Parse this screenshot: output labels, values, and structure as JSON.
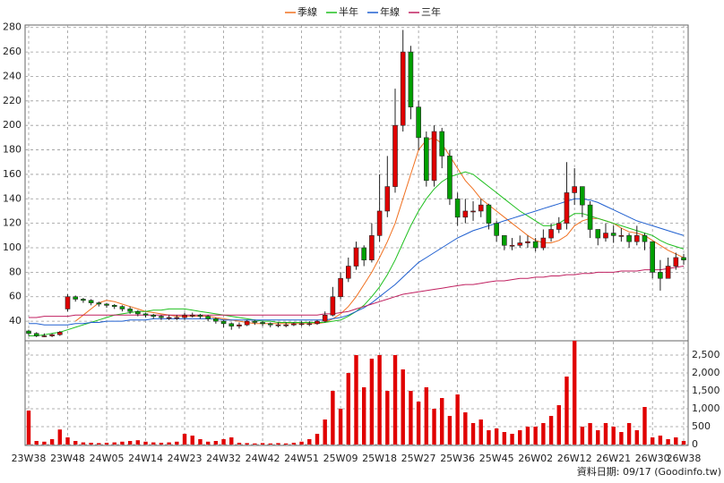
{
  "chart_data": {
    "type": "candlestick",
    "categories": [
      "23W38",
      null,
      null,
      null,
      null,
      "23W48",
      null,
      null,
      null,
      null,
      "24W05",
      null,
      null,
      null,
      null,
      "24W14",
      null,
      null,
      null,
      null,
      "24W23",
      null,
      null,
      null,
      null,
      "24W32",
      null,
      null,
      null,
      null,
      "24W42",
      null,
      null,
      null,
      null,
      "24W51",
      null,
      null,
      null,
      null,
      "25W09",
      null,
      null,
      null,
      null,
      "25W18",
      null,
      null,
      null,
      null,
      "25W27",
      null,
      null,
      null,
      null,
      "25W36",
      null,
      null,
      null,
      null,
      "25W45",
      null,
      null,
      null,
      null,
      "26W02",
      null,
      null,
      null,
      null,
      "26W12",
      null,
      null,
      null,
      null,
      "26W21",
      null,
      null,
      null,
      null,
      "26W30",
      null,
      null,
      null,
      "26W38"
    ],
    "open": [
      32,
      30,
      28,
      28,
      29,
      50,
      60,
      58,
      57,
      55,
      54,
      53,
      52,
      50,
      48,
      46,
      45,
      44,
      43,
      43,
      43,
      45,
      45,
      44,
      42,
      40,
      38,
      36,
      37,
      40,
      39,
      38,
      37,
      37,
      37,
      38,
      38,
      38,
      40,
      45,
      60,
      75,
      85,
      100,
      90,
      110,
      130,
      150,
      200,
      260,
      215,
      190,
      155,
      195,
      175,
      140,
      125,
      130,
      130,
      135,
      120,
      110,
      102,
      102,
      104,
      105,
      100,
      108,
      115,
      120,
      145,
      150,
      135,
      115,
      108,
      112,
      110,
      110,
      105,
      110,
      105,
      80,
      75,
      85,
      92
    ],
    "high": [
      33,
      31,
      30,
      30,
      32,
      62,
      61,
      59,
      58,
      56,
      55,
      54,
      53,
      52,
      49,
      47,
      46,
      45,
      45,
      45,
      47,
      47,
      46,
      45,
      43,
      41,
      39,
      39,
      41,
      41,
      40,
      39,
      39,
      39,
      39,
      40,
      40,
      41,
      48,
      68,
      80,
      92,
      105,
      102,
      120,
      160,
      175,
      230,
      278,
      265,
      220,
      195,
      200,
      198,
      180,
      145,
      140,
      138,
      140,
      136,
      122,
      110,
      108,
      110,
      110,
      108,
      115,
      120,
      125,
      170,
      165,
      150,
      138,
      115,
      120,
      118,
      116,
      112,
      118,
      112,
      105,
      90,
      92,
      96,
      95
    ],
    "low": [
      28,
      27,
      27,
      27,
      28,
      48,
      56,
      55,
      53,
      52,
      51,
      50,
      48,
      46,
      44,
      43,
      42,
      41,
      41,
      41,
      41,
      43,
      42,
      40,
      38,
      35,
      33,
      34,
      36,
      37,
      36,
      35,
      35,
      35,
      36,
      36,
      36,
      37,
      39,
      44,
      58,
      72,
      82,
      85,
      88,
      105,
      125,
      145,
      195,
      205,
      180,
      150,
      150,
      165,
      135,
      118,
      120,
      122,
      125,
      115,
      105,
      98,
      98,
      100,
      100,
      97,
      98,
      105,
      112,
      115,
      135,
      125,
      108,
      102,
      105,
      104,
      105,
      100,
      102,
      98,
      75,
      65,
      75,
      82,
      86
    ],
    "close": [
      30,
      28,
      28,
      29,
      31,
      60,
      58,
      57,
      55,
      54,
      53,
      52,
      50,
      48,
      46,
      45,
      44,
      43,
      43,
      43,
      45,
      45,
      44,
      42,
      40,
      38,
      36,
      37,
      40,
      39,
      38,
      37,
      37,
      37,
      38,
      38,
      38,
      40,
      45,
      60,
      75,
      85,
      100,
      90,
      110,
      130,
      150,
      200,
      260,
      215,
      190,
      155,
      195,
      175,
      140,
      125,
      130,
      130,
      135,
      120,
      110,
      102,
      102,
      104,
      105,
      100,
      108,
      115,
      120,
      145,
      150,
      135,
      115,
      108,
      112,
      110,
      110,
      105,
      110,
      105,
      80,
      75,
      85,
      92,
      90
    ],
    "up_color": "#e00000",
    "down_color": "#00a000",
    "volume": [
      950,
      100,
      80,
      150,
      420,
      200,
      100,
      60,
      50,
      40,
      50,
      60,
      80,
      100,
      120,
      80,
      60,
      50,
      60,
      80,
      300,
      250,
      150,
      80,
      100,
      150,
      200,
      50,
      40,
      30,
      40,
      30,
      40,
      30,
      50,
      80,
      150,
      300,
      700,
      1500,
      1000,
      2000,
      2500,
      1600,
      2400,
      2500,
      1500,
      2500,
      2100,
      1500,
      1200,
      1600,
      1000,
      1300,
      800,
      1400,
      900,
      600,
      700,
      400,
      450,
      350,
      300,
      400,
      500,
      500,
      600,
      800,
      1100,
      1900,
      2900,
      500,
      600,
      400,
      600,
      500,
      350,
      600,
      400,
      1050,
      200,
      250,
      150,
      200,
      100
    ],
    "volume_color": "#e00000",
    "series": [
      {
        "name": "季線",
        "color": "#f07020",
        "values": [
          null,
          null,
          null,
          null,
          null,
          null,
          40,
          45,
          50,
          55,
          57,
          56,
          54,
          52,
          50,
          48,
          47,
          46,
          45,
          44,
          44,
          44,
          44,
          44,
          43,
          42,
          41,
          40,
          39,
          38,
          38,
          38,
          38,
          38,
          38,
          38,
          38,
          38,
          39,
          42,
          46,
          52,
          60,
          70,
          80,
          92,
          105,
          120,
          140,
          160,
          180,
          188,
          190,
          185,
          175,
          165,
          155,
          148,
          140,
          135,
          130,
          125,
          120,
          115,
          110,
          106,
          104,
          104,
          106,
          110,
          118,
          122,
          124,
          124,
          122,
          120,
          116,
          113,
          112,
          110,
          106,
          102,
          98,
          95,
          92
        ]
      },
      {
        "name": "半年",
        "color": "#20c020",
        "values": [
          28,
          28,
          29,
          30,
          31,
          33,
          35,
          37,
          39,
          41,
          43,
          45,
          46,
          47,
          48,
          48,
          49,
          49,
          50,
          50,
          50,
          49,
          48,
          47,
          46,
          45,
          44,
          43,
          42,
          41,
          40,
          40,
          39,
          39,
          39,
          39,
          39,
          39,
          39,
          40,
          41,
          44,
          48,
          53,
          60,
          68,
          78,
          90,
          104,
          118,
          130,
          140,
          148,
          154,
          158,
          160,
          162,
          160,
          155,
          150,
          145,
          140,
          135,
          130,
          126,
          122,
          118,
          118,
          120,
          124,
          128,
          128,
          126,
          124,
          122,
          120,
          118,
          116,
          114,
          112,
          110,
          106,
          103,
          101,
          99
        ]
      },
      {
        "name": "年線",
        "color": "#2060d0",
        "values": [
          38,
          38,
          37,
          37,
          37,
          37,
          38,
          38,
          39,
          39,
          40,
          40,
          40,
          41,
          41,
          41,
          42,
          42,
          42,
          42,
          42,
          42,
          42,
          42,
          42,
          41,
          41,
          41,
          41,
          41,
          41,
          41,
          41,
          41,
          41,
          41,
          41,
          41,
          41,
          42,
          43,
          45,
          48,
          51,
          55,
          60,
          65,
          70,
          76,
          82,
          88,
          92,
          96,
          100,
          104,
          108,
          111,
          114,
          116,
          118,
          120,
          122,
          124,
          126,
          128,
          130,
          132,
          134,
          136,
          138,
          140,
          140,
          139,
          137,
          134,
          131,
          128,
          125,
          122,
          120,
          118,
          116,
          114,
          112,
          110
        ]
      },
      {
        "name": "三年",
        "color": "#c02060",
        "values": [
          43,
          43,
          44,
          44,
          44,
          44,
          45,
          45,
          45,
          45,
          45,
          45,
          45,
          45,
          45,
          45,
          45,
          45,
          45,
          45,
          45,
          45,
          45,
          45,
          45,
          45,
          45,
          45,
          45,
          45,
          45,
          45,
          45,
          45,
          45,
          45,
          45,
          45,
          46,
          46,
          47,
          48,
          50,
          52,
          54,
          56,
          58,
          60,
          62,
          63,
          64,
          65,
          66,
          67,
          68,
          69,
          70,
          70,
          71,
          72,
          73,
          73,
          74,
          75,
          75,
          76,
          76,
          77,
          77,
          78,
          78,
          79,
          79,
          80,
          80,
          80,
          81,
          81,
          81,
          82,
          82,
          82,
          83,
          84,
          85
        ]
      }
    ],
    "ylim": [
      24,
      282
    ],
    "yticks": [
      40,
      60,
      80,
      100,
      120,
      140,
      160,
      180,
      200,
      220,
      240,
      260,
      280
    ],
    "y2lim": [
      0,
      2900
    ],
    "y2ticks": [
      0,
      {
        "value": 500,
        "label": "500"
      },
      {
        "value": 1000,
        "label": "1,000"
      },
      {
        "value": 1500,
        "label": "1,500"
      },
      {
        "value": 2000,
        "label": "2,000"
      },
      {
        "value": 2500,
        "label": "2,500"
      }
    ],
    "grid": true,
    "legend": "top",
    "source": "資料日期: 09/17 (Goodinfo.tw)"
  }
}
